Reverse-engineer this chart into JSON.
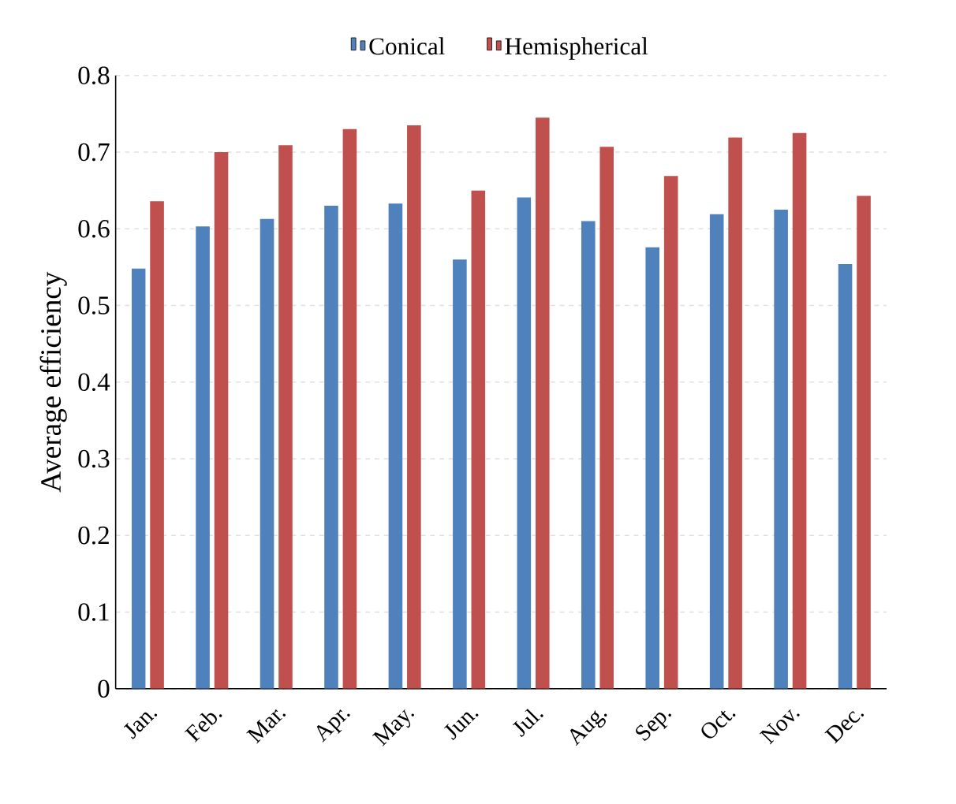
{
  "chart_data": {
    "type": "bar",
    "ylabel": "Average efficiency",
    "categories": [
      "Jan.",
      "Feb.",
      "Mar.",
      "Apr.",
      "May.",
      "Jun.",
      "Jul.",
      "Aug.",
      "Sep.",
      "Oct.",
      "Nov.",
      "Dec."
    ],
    "series": [
      {
        "name": "Conical",
        "color": "#4f81bd",
        "values": [
          0.548,
          0.603,
          0.613,
          0.63,
          0.633,
          0.56,
          0.641,
          0.61,
          0.576,
          0.619,
          0.625,
          0.554
        ]
      },
      {
        "name": "Hemispherical",
        "color": "#c0504d",
        "values": [
          0.636,
          0.7,
          0.709,
          0.73,
          0.735,
          0.65,
          0.745,
          0.707,
          0.669,
          0.719,
          0.725,
          0.643
        ]
      }
    ],
    "ylim": [
      0,
      0.8
    ],
    "yticks": [
      0,
      0.1,
      0.2,
      0.3,
      0.4,
      0.5,
      0.6,
      0.7,
      0.8
    ],
    "grid": "y",
    "legend": "top"
  }
}
